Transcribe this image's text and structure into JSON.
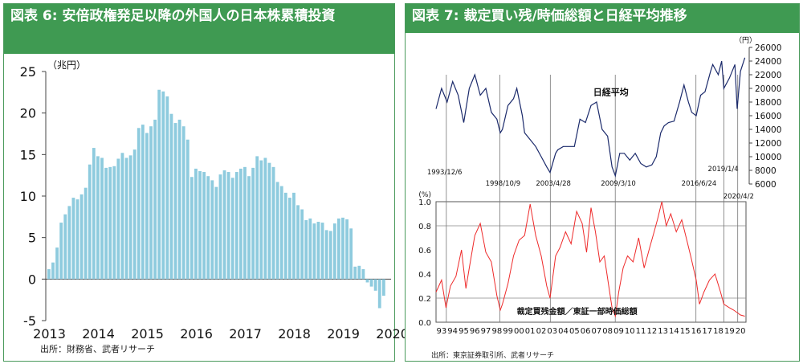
{
  "left": {
    "title": "図表 6: 安倍政権発足以降の外国人の日本株累積投資",
    "source": "出所：財務省、武者リサーチ"
  },
  "right": {
    "title": "図表 7: 裁定買い残/時価総額と日経平均推移",
    "source": "出所：東京証券取引所、武者リサーチ"
  },
  "colors": {
    "bar": "#8ecbde",
    "nikkei": "#1b2a6b",
    "arb": "#ee2a2a",
    "green": "#3f9a52"
  },
  "chart_data": [
    {
      "type": "bar",
      "title": "図表 6: 安倍政権発足以降の外国人の日本株累積投資",
      "ylabel": "（兆円）",
      "ylim": [
        -5,
        25
      ],
      "yticks": [
        -5,
        0,
        5,
        10,
        15,
        20,
        25
      ],
      "x_tick_labels": [
        "2013",
        "2014",
        "2015",
        "2016",
        "2017",
        "2018",
        "2019",
        "2020"
      ],
      "x_start": 2013,
      "values": [
        1.2,
        2.0,
        3.8,
        6.8,
        7.8,
        8.8,
        9.8,
        9.6,
        10.2,
        11.0,
        13.8,
        15.8,
        14.8,
        14.6,
        13.4,
        13.5,
        13.6,
        14.5,
        15.2,
        14.6,
        14.9,
        15.6,
        18.2,
        18.6,
        17.6,
        18.4,
        19.2,
        22.8,
        22.6,
        22.0,
        19.9,
        18.8,
        19.2,
        18.4,
        16.8,
        12.3,
        13.3,
        13.0,
        12.9,
        12.4,
        11.9,
        11.1,
        12.6,
        13.1,
        12.9,
        12.2,
        12.9,
        13.3,
        13.5,
        12.4,
        13.4,
        14.8,
        14.3,
        14.6,
        14.0,
        13.5,
        11.7,
        11.2,
        10.4,
        9.8,
        10.4,
        8.9,
        8.4,
        7.1,
        7.3,
        6.7,
        6.9,
        6.8,
        5.9,
        5.8,
        6.7,
        7.3,
        7.4,
        7.2,
        6.1,
        1.5,
        1.6,
        1.2,
        -0.4,
        -0.9,
        -1.4,
        -3.5,
        -2.0
      ]
    },
    {
      "type": "line",
      "title": "図表 7: 裁定買い残/時価総額と日経平均推移",
      "x_tick_labels": [
        "93",
        "94",
        "95",
        "96",
        "97",
        "98",
        "99",
        "00",
        "01",
        "02",
        "03",
        "04",
        "05",
        "06",
        "07",
        "08",
        "09",
        "10",
        "11",
        "12",
        "13",
        "14",
        "15",
        "16",
        "17",
        "18",
        "19",
        "20"
      ],
      "x_start_year": 1993,
      "annotations": [
        {
          "date": "1993/12/6",
          "label": "1993/12/6"
        },
        {
          "date": "1998/10/9",
          "label": "1998/10/9"
        },
        {
          "date": "2003/4/28",
          "label": "2003/4/28"
        },
        {
          "date": "2009/3/10",
          "label": "2009/3/10"
        },
        {
          "date": "2016/6/24",
          "label": "2016/6/24"
        },
        {
          "date": "2019/1/4",
          "label": "2019/1/4"
        },
        {
          "date": "2020/4/2",
          "label": "2020/4/2"
        }
      ],
      "nikkei": {
        "name": "日経平均",
        "unit": "（円）",
        "ylim": [
          6000,
          26000
        ],
        "yticks": [
          6000,
          8000,
          10000,
          12000,
          14000,
          16000,
          18000,
          20000,
          22000,
          24000,
          26000
        ],
        "x": [
          1993.0,
          1993.5,
          1994.0,
          1994.5,
          1995.0,
          1995.5,
          1996.0,
          1996.5,
          1997.0,
          1997.5,
          1998.0,
          1998.5,
          1998.8,
          1999.0,
          1999.5,
          2000.0,
          2000.3,
          2000.8,
          2001.0,
          2001.5,
          2002.0,
          2002.5,
          2003.0,
          2003.3,
          2003.8,
          2004.0,
          2004.5,
          2005.0,
          2005.5,
          2006.0,
          2006.5,
          2007.0,
          2007.5,
          2008.0,
          2008.5,
          2008.9,
          2009.2,
          2009.6,
          2010.0,
          2010.5,
          2011.0,
          2011.5,
          2012.0,
          2012.5,
          2012.9,
          2013.3,
          2013.6,
          2014.0,
          2014.5,
          2015.0,
          2015.4,
          2015.8,
          2016.1,
          2016.5,
          2016.9,
          2017.3,
          2017.8,
          2018.0,
          2018.5,
          2018.8,
          2019.0,
          2019.5,
          2020.0,
          2020.2,
          2020.5,
          2020.9
        ],
        "y": [
          17000,
          20000,
          18000,
          21000,
          19000,
          15000,
          20000,
          22000,
          19000,
          20000,
          16500,
          15500,
          13500,
          14000,
          17500,
          18500,
          20000,
          16000,
          13500,
          12500,
          11500,
          10000,
          8500,
          7700,
          10500,
          11000,
          11500,
          11500,
          11500,
          15500,
          15000,
          17500,
          18000,
          14000,
          13000,
          8500,
          7200,
          10500,
          10500,
          9500,
          10500,
          9000,
          8500,
          8800,
          10000,
          13500,
          14500,
          15000,
          15200,
          18000,
          20500,
          18000,
          16500,
          16000,
          19000,
          19500,
          22500,
          23500,
          22000,
          24000,
          20000,
          21500,
          23500,
          17000,
          22500,
          24500
        ]
      },
      "arbitrage_ratio": {
        "name": "裁定買残金額／東証一部時価総額",
        "unit": "(%)",
        "ylim": [
          0.0,
          1.0
        ],
        "yticks": [
          0.0,
          0.2,
          0.4,
          0.6,
          0.8,
          1.0
        ],
        "gridlines": [
          0.2,
          0.8
        ],
        "x": [
          1993.0,
          1993.5,
          1993.9,
          1994.3,
          1994.8,
          1995.3,
          1995.7,
          1996.0,
          1996.5,
          1997.0,
          1997.5,
          1998.0,
          1998.5,
          1998.8,
          1999.0,
          1999.5,
          2000.0,
          2000.5,
          2001.0,
          2001.5,
          2002.0,
          2002.5,
          2003.0,
          2003.3,
          2003.8,
          2004.2,
          2004.7,
          2005.2,
          2005.7,
          2006.2,
          2006.6,
          2007.0,
          2007.4,
          2007.8,
          2008.2,
          2008.6,
          2008.9,
          2009.2,
          2009.5,
          2009.9,
          2010.3,
          2010.8,
          2011.3,
          2011.8,
          2012.3,
          2012.7,
          2013.0,
          2013.4,
          2013.8,
          2014.2,
          2014.7,
          2015.2,
          2015.6,
          2016.0,
          2016.5,
          2016.8,
          2017.2,
          2017.7,
          2018.2,
          2018.7,
          2019.0,
          2019.5,
          2019.9,
          2020.2,
          2020.5,
          2020.9
        ],
        "y": [
          0.25,
          0.35,
          0.12,
          0.3,
          0.38,
          0.6,
          0.28,
          0.45,
          0.72,
          0.82,
          0.58,
          0.5,
          0.22,
          0.1,
          0.15,
          0.32,
          0.55,
          0.68,
          0.72,
          0.98,
          0.72,
          0.55,
          0.3,
          0.2,
          0.55,
          0.62,
          0.75,
          0.65,
          0.92,
          0.82,
          0.58,
          0.95,
          0.75,
          0.5,
          0.55,
          0.3,
          0.12,
          0.05,
          0.25,
          0.45,
          0.55,
          0.5,
          0.7,
          0.45,
          0.62,
          0.75,
          0.85,
          1.0,
          0.8,
          0.9,
          0.75,
          0.85,
          0.7,
          0.55,
          0.35,
          0.15,
          0.25,
          0.35,
          0.4,
          0.25,
          0.15,
          0.12,
          0.1,
          0.08,
          0.06,
          0.05
        ]
      }
    }
  ]
}
